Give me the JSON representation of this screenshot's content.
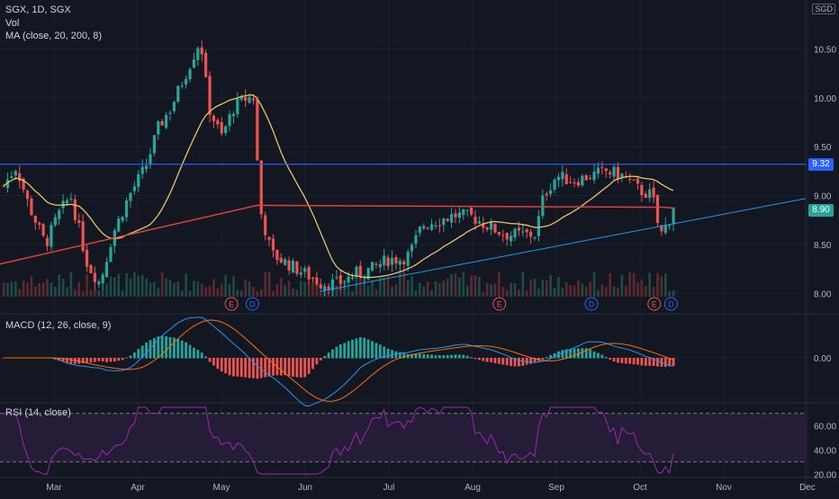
{
  "header": {
    "symbol_line": "SGX, 1D, SGX",
    "vol_label": "Vol",
    "ma_label": "MA (close, 20, 200, 8)",
    "currency": "SGD"
  },
  "price_axis": {
    "ticks": [
      "10.50",
      "10.00",
      "9.50",
      "9.00",
      "8.50",
      "8.00"
    ],
    "tick_values": [
      10.5,
      10.0,
      9.5,
      9.0,
      8.5,
      8.0
    ],
    "range": [
      7.8,
      11.0
    ],
    "resistance_label": "9.32",
    "resistance_value": 9.32,
    "last_price_label": "8.90",
    "last_price_value": 8.9
  },
  "macd": {
    "label": "MACD (12, 26, close, 9)",
    "tick": "0.00"
  },
  "rsi": {
    "label": "RSI (14, close)",
    "ticks": [
      "60.00",
      "40.00",
      "20.00"
    ],
    "tick_values": [
      60,
      40,
      20
    ],
    "bands": [
      70,
      30
    ],
    "range": [
      18,
      78
    ]
  },
  "time_axis": {
    "labels": [
      "Mar",
      "Apr",
      "May",
      "Jun",
      "Jul",
      "Aug",
      "Sep",
      "Oct",
      "Nov",
      "Dec"
    ]
  },
  "events": [
    {
      "type": "E",
      "month_index": 2.7
    },
    {
      "type": "D",
      "month_index": 2.95
    },
    {
      "type": "E",
      "month_index": 5.9
    },
    {
      "type": "D",
      "month_index": 7.0
    },
    {
      "type": "E",
      "month_index": 7.75
    },
    {
      "type": "D",
      "month_index": 7.95
    }
  ],
  "colors": {
    "up": "#26a69a",
    "down": "#ef5350",
    "ma20": "#e8c36a",
    "ma200": "#e0403b",
    "resistance": "#2962ff",
    "trendline": "#2196f3",
    "macd_line": "#2196f3",
    "signal_line": "#ff6d00",
    "rsi_line": "#9c27b0",
    "rsi_band": "#2a1f3d"
  },
  "chart_data": {
    "type": "candlestick",
    "price_path": [
      [
        0.0,
        9.1
      ],
      [
        0.15,
        9.3
      ],
      [
        0.3,
        8.9
      ],
      [
        0.5,
        8.5
      ],
      [
        0.65,
        8.8
      ],
      [
        0.8,
        9.0
      ],
      [
        1.0,
        8.3
      ],
      [
        1.15,
        8.1
      ],
      [
        1.3,
        8.6
      ],
      [
        1.5,
        9.0
      ],
      [
        1.7,
        9.3
      ],
      [
        1.85,
        9.7
      ],
      [
        2.0,
        9.9
      ],
      [
        2.2,
        10.3
      ],
      [
        2.35,
        10.6
      ],
      [
        2.45,
        9.9
      ],
      [
        2.6,
        9.6
      ],
      [
        2.75,
        9.9
      ],
      [
        2.9,
        10.0
      ],
      [
        3.0,
        10.0
      ],
      [
        3.05,
        8.9
      ],
      [
        3.2,
        8.4
      ],
      [
        3.4,
        8.3
      ],
      [
        3.6,
        8.2
      ],
      [
        3.8,
        8.1
      ],
      [
        4.0,
        8.1
      ],
      [
        4.2,
        8.2
      ],
      [
        4.4,
        8.25
      ],
      [
        4.6,
        8.35
      ],
      [
        4.75,
        8.35
      ],
      [
        4.85,
        8.4
      ],
      [
        5.0,
        8.7
      ],
      [
        5.2,
        8.75
      ],
      [
        5.4,
        8.8
      ],
      [
        5.6,
        8.78
      ],
      [
        5.8,
        8.68
      ],
      [
        6.0,
        8.6
      ],
      [
        6.2,
        8.6
      ],
      [
        6.35,
        8.6
      ],
      [
        6.45,
        9.0
      ],
      [
        6.6,
        9.2
      ],
      [
        6.8,
        9.15
      ],
      [
        7.0,
        9.2
      ],
      [
        7.2,
        9.25
      ],
      [
        7.4,
        9.2
      ],
      [
        7.6,
        9.05
      ],
      [
        7.75,
        9.0
      ],
      [
        7.8,
        8.75
      ],
      [
        7.85,
        8.6
      ],
      [
        7.95,
        8.75
      ],
      [
        8.0,
        8.9
      ]
    ]
  }
}
